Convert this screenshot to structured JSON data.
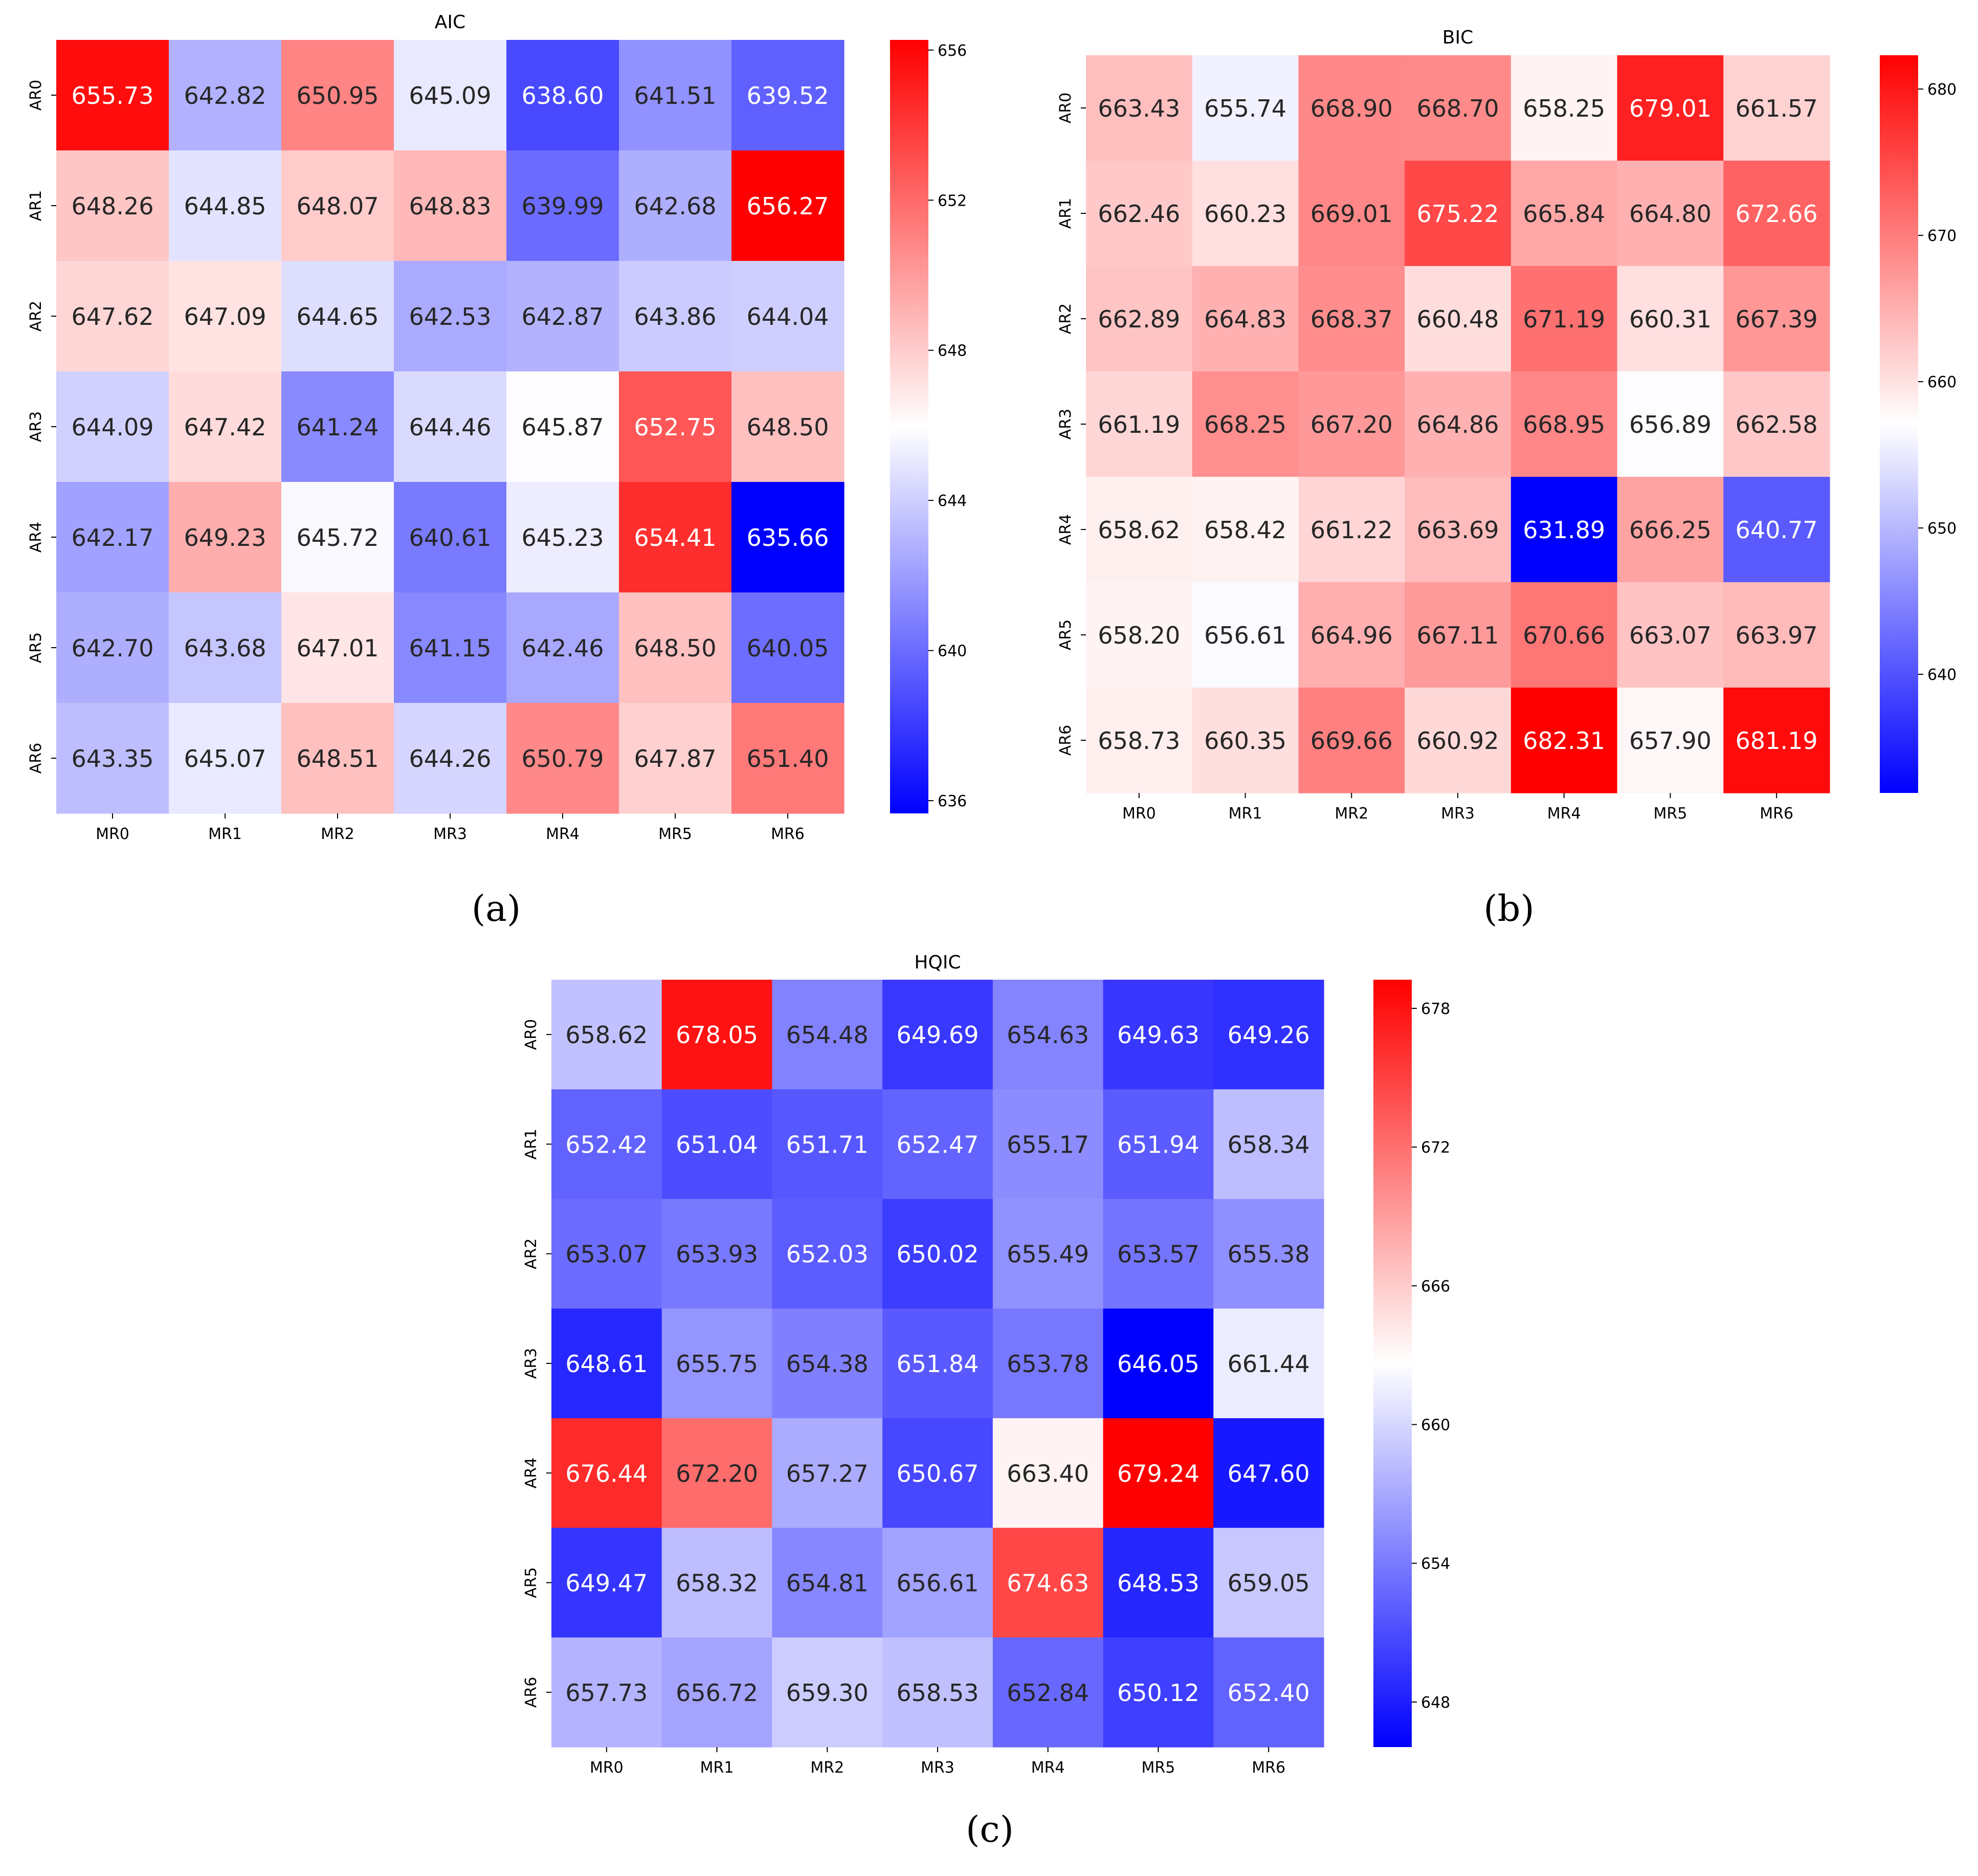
{
  "colors": {
    "low": "#0000ff",
    "mid": "#ffffff",
    "high": "#ff0000",
    "axis": "#000000"
  },
  "chart_data": [
    {
      "type": "heatmap",
      "panel": "a",
      "caption": "(a)",
      "title": "AIC",
      "x_labels": [
        "MR0",
        "MR1",
        "MR2",
        "MR3",
        "MR4",
        "MR5",
        "MR6"
      ],
      "y_labels": [
        "AR0",
        "AR1",
        "AR2",
        "AR3",
        "AR4",
        "AR5",
        "AR6"
      ],
      "values": [
        [
          655.73,
          642.82,
          650.95,
          645.09,
          638.6,
          641.51,
          639.52
        ],
        [
          648.26,
          644.85,
          648.07,
          648.83,
          639.99,
          642.68,
          656.27
        ],
        [
          647.62,
          647.09,
          644.65,
          642.53,
          642.87,
          643.86,
          644.04
        ],
        [
          644.09,
          647.42,
          641.24,
          644.46,
          645.87,
          652.75,
          648.5
        ],
        [
          642.17,
          649.23,
          645.72,
          640.61,
          645.23,
          654.41,
          635.66
        ],
        [
          642.7,
          643.68,
          647.01,
          641.15,
          642.46,
          648.5,
          640.05
        ],
        [
          643.35,
          645.07,
          648.51,
          644.26,
          650.79,
          647.87,
          651.4
        ]
      ],
      "colorbar": {
        "min": 635.66,
        "max": 656.27,
        "ticks": [
          636,
          640,
          644,
          648,
          652,
          656
        ]
      }
    },
    {
      "type": "heatmap",
      "panel": "b",
      "caption": "(b)",
      "title": "BIC",
      "x_labels": [
        "MR0",
        "MR1",
        "MR2",
        "MR3",
        "MR4",
        "MR5",
        "MR6"
      ],
      "y_labels": [
        "AR0",
        "AR1",
        "AR2",
        "AR3",
        "AR4",
        "AR5",
        "AR6"
      ],
      "values": [
        [
          663.43,
          655.74,
          668.9,
          668.7,
          658.25,
          679.01,
          661.57
        ],
        [
          662.46,
          660.23,
          669.01,
          675.22,
          665.84,
          664.8,
          672.66
        ],
        [
          662.89,
          664.83,
          668.37,
          660.48,
          671.19,
          660.31,
          667.39
        ],
        [
          661.19,
          668.25,
          667.2,
          664.86,
          668.95,
          656.89,
          662.58
        ],
        [
          658.62,
          658.42,
          661.22,
          663.69,
          631.89,
          666.25,
          640.77
        ],
        [
          658.2,
          656.61,
          664.96,
          667.11,
          670.66,
          663.07,
          663.97
        ],
        [
          658.73,
          660.35,
          669.66,
          660.92,
          682.31,
          657.9,
          681.19
        ]
      ],
      "colorbar": {
        "min": 631.89,
        "max": 682.31,
        "ticks": [
          640,
          650,
          660,
          670,
          680
        ]
      }
    },
    {
      "type": "heatmap",
      "panel": "c",
      "caption": "(c)",
      "title": "HQIC",
      "x_labels": [
        "MR0",
        "MR1",
        "MR2",
        "MR3",
        "MR4",
        "MR5",
        "MR6"
      ],
      "y_labels": [
        "AR0",
        "AR1",
        "AR2",
        "AR3",
        "AR4",
        "AR5",
        "AR6"
      ],
      "values": [
        [
          658.62,
          678.05,
          654.48,
          649.69,
          654.63,
          649.63,
          649.26
        ],
        [
          652.42,
          651.04,
          651.71,
          652.47,
          655.17,
          651.94,
          658.34
        ],
        [
          653.07,
          653.93,
          652.03,
          650.02,
          655.49,
          653.57,
          655.38
        ],
        [
          648.61,
          655.75,
          654.38,
          651.84,
          653.78,
          646.05,
          661.44
        ],
        [
          676.44,
          672.2,
          657.27,
          650.67,
          663.4,
          679.24,
          647.6
        ],
        [
          649.47,
          658.32,
          654.81,
          656.61,
          674.63,
          648.53,
          659.05
        ],
        [
          657.73,
          656.72,
          659.3,
          658.53,
          652.84,
          650.12,
          652.4
        ]
      ],
      "colorbar": {
        "min": 646.05,
        "max": 679.24,
        "ticks": [
          648,
          654,
          660,
          666,
          672,
          678
        ]
      }
    }
  ]
}
